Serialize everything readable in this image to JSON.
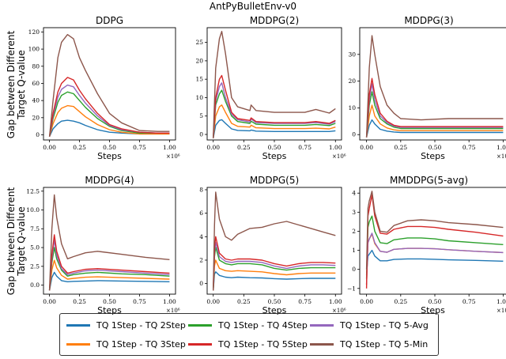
{
  "suptitle": "AntPyBulletEnv-v0",
  "ylabel_lines": [
    "Gap between Different",
    "Target Q-value"
  ],
  "legend": [
    {
      "key": "blue",
      "label": "TQ 1Step - TQ 2Step",
      "color": "#1f77b4"
    },
    {
      "key": "orange",
      "label": "TQ 1Step - TQ 3Step",
      "color": "#ff7f0e"
    },
    {
      "key": "green",
      "label": "TQ 1Step - TQ 4Step",
      "color": "#2ca02c"
    },
    {
      "key": "red",
      "label": "TQ 1Step - TQ 5Step",
      "color": "#d62728"
    },
    {
      "key": "purple",
      "label": "TQ 1Step - TQ 5-Avg",
      "color": "#9467bd"
    },
    {
      "key": "brown",
      "label": "TQ 1Step - TQ 5-Min",
      "color": "#8c564b"
    }
  ],
  "chart_data": [
    {
      "type": "line",
      "title": "DDPG",
      "xlabel": "Steps",
      "x_scale_label": "×10⁶",
      "ylabel": "Gap between Different Target Q-value",
      "xlim": [
        -0.05,
        1.05
      ],
      "ylim": [
        -6,
        125
      ],
      "xticks": [
        0,
        0.25,
        0.5,
        0.75,
        1
      ],
      "xtick_labels": [
        "0.00",
        "0.25",
        "0.50",
        "0.75",
        "1.00"
      ],
      "yticks": [
        0,
        20,
        40,
        60,
        80,
        100,
        120
      ],
      "ytick_labels": [
        "0",
        "20",
        "40",
        "60",
        "80",
        "100",
        "120"
      ],
      "x": [
        0,
        0.03,
        0.07,
        0.1,
        0.15,
        0.2,
        0.25,
        0.3,
        0.4,
        0.5,
        0.6,
        0.75,
        0.9,
        1.0
      ],
      "series": {
        "brown": [
          -2,
          40,
          90,
          108,
          117,
          112,
          90,
          75,
          48,
          25,
          14,
          5,
          4,
          4
        ],
        "red": [
          -2,
          25,
          50,
          60,
          67,
          64,
          52,
          42,
          25,
          12,
          7,
          3,
          2,
          2
        ],
        "purple": [
          -2,
          22,
          44,
          53,
          58,
          56,
          46,
          37,
          22,
          11,
          6,
          3,
          2,
          2
        ],
        "green": [
          -2,
          19,
          38,
          46,
          50,
          48,
          40,
          32,
          19,
          10,
          5,
          2,
          2,
          2
        ],
        "orange": [
          -2,
          13,
          26,
          31,
          34,
          33,
          27,
          21,
          12,
          6,
          3,
          1,
          1,
          1
        ],
        "blue": [
          -2,
          7,
          13,
          16,
          17,
          16,
          14,
          11,
          6,
          3,
          2,
          1,
          1,
          1
        ]
      }
    },
    {
      "type": "line",
      "title": "MDDPG(2)",
      "xlabel": "Steps",
      "x_scale_label": "×10⁶",
      "xlim": [
        -0.05,
        1.05
      ],
      "ylim": [
        -1.5,
        29
      ],
      "xticks": [
        0,
        0.25,
        0.5,
        0.75,
        1
      ],
      "xtick_labels": [
        "0.00",
        "0.25",
        "0.50",
        "0.75",
        "1.00"
      ],
      "yticks": [
        0,
        5,
        10,
        15,
        20,
        25
      ],
      "ytick_labels": [
        "0",
        "5",
        "10",
        "15",
        "20",
        "25"
      ],
      "x": [
        0,
        0.02,
        0.05,
        0.07,
        0.1,
        0.15,
        0.2,
        0.3,
        0.31,
        0.35,
        0.5,
        0.75,
        0.84,
        0.95,
        1.0
      ],
      "series": {
        "brown": [
          -1,
          18,
          26,
          28,
          22,
          10,
          7.5,
          6.5,
          8,
          6.5,
          6,
          6,
          6.8,
          5.8,
          7
        ],
        "red": [
          -1,
          10,
          15,
          16,
          12,
          6,
          4.3,
          3.8,
          4.5,
          3.5,
          3.2,
          3.2,
          3.5,
          3,
          3.8
        ],
        "purple": [
          -1,
          9,
          13,
          14,
          10,
          5.5,
          4,
          3.4,
          4.2,
          3.2,
          3,
          3,
          3.2,
          2.8,
          3.5
        ],
        "green": [
          -1,
          8,
          11,
          12,
          9,
          5,
          3.5,
          3,
          3.6,
          2.8,
          2.5,
          2.5,
          2.7,
          2.4,
          3
        ],
        "orange": [
          -1,
          5,
          7.5,
          8,
          6,
          3,
          2.2,
          2,
          2.5,
          1.8,
          1.6,
          1.6,
          1.7,
          1.5,
          2
        ],
        "blue": [
          -1,
          2.5,
          3.8,
          4,
          3,
          1.5,
          1.1,
          1,
          1.2,
          0.9,
          0.8,
          0.8,
          0.8,
          0.8,
          1
        ]
      }
    },
    {
      "type": "line",
      "title": "MDDPG(3)",
      "xlabel": "Steps",
      "x_scale_label": "×10⁶",
      "xlim": [
        -0.05,
        1.05
      ],
      "ylim": [
        -2,
        40
      ],
      "xticks": [
        0,
        0.25,
        0.5,
        0.75,
        1
      ],
      "xtick_labels": [
        "0.00",
        "0.25",
        "0.50",
        "0.75",
        "1.00"
      ],
      "yticks": [
        0,
        10,
        20,
        30
      ],
      "ytick_labels": [
        "0",
        "10",
        "20",
        "30"
      ],
      "x": [
        0,
        0.02,
        0.04,
        0.06,
        0.1,
        0.15,
        0.2,
        0.25,
        0.4,
        0.6,
        0.8,
        1.0
      ],
      "series": {
        "brown": [
          -1,
          25,
          37,
          30,
          18,
          11,
          8,
          6,
          5.5,
          6,
          6,
          6
        ],
        "red": [
          -1,
          15,
          21,
          15,
          8,
          5,
          3.5,
          3,
          3,
          3,
          3,
          3
        ],
        "purple": [
          -1,
          13,
          19,
          13,
          7,
          4.5,
          3.2,
          2.7,
          2.7,
          2.7,
          2.7,
          2.7
        ],
        "green": [
          -1,
          11,
          16,
          11,
          6,
          4,
          2.8,
          2.3,
          2.3,
          2.3,
          2.3,
          2.3
        ],
        "orange": [
          -1,
          7,
          11,
          7,
          4,
          2.5,
          1.8,
          1.5,
          1.5,
          1.5,
          1.5,
          1.5
        ],
        "blue": [
          -1,
          3.5,
          5.5,
          4,
          2,
          1.3,
          1,
          0.8,
          0.8,
          0.8,
          0.8,
          0.8
        ]
      }
    },
    {
      "type": "line",
      "title": "MDDPG(4)",
      "xlabel": "Steps",
      "x_scale_label": "×10⁶",
      "ylabel": "Gap between Different Target Q-value",
      "xlim": [
        -0.05,
        1.05
      ],
      "ylim": [
        -1.2,
        13
      ],
      "xticks": [
        0,
        0.25,
        0.5,
        0.75,
        1
      ],
      "xtick_labels": [
        "0.00",
        "0.25",
        "0.50",
        "0.75",
        "1.00"
      ],
      "yticks": [
        0,
        2.5,
        5,
        7.5,
        10,
        12.5
      ],
      "ytick_labels": [
        "0.0",
        "2.5",
        "5.0",
        "7.5",
        "10.0",
        "12.5"
      ],
      "x": [
        0,
        0.02,
        0.04,
        0.06,
        0.1,
        0.15,
        0.2,
        0.3,
        0.4,
        0.6,
        0.8,
        1.0
      ],
      "series": {
        "brown": [
          -0.7,
          7.5,
          12,
          9,
          5.5,
          3.5,
          3.8,
          4.3,
          4.5,
          4.1,
          3.7,
          3.4
        ],
        "red": [
          -0.7,
          4,
          6.7,
          4.5,
          2.5,
          1.6,
          1.8,
          2.1,
          2.2,
          2,
          1.8,
          1.6
        ],
        "purple": [
          -0.7,
          3.5,
          6,
          4,
          2.2,
          1.4,
          1.6,
          1.9,
          2,
          1.8,
          1.6,
          1.4
        ],
        "green": [
          -0.7,
          3,
          5,
          3.5,
          2,
          1.2,
          1.4,
          1.6,
          1.7,
          1.5,
          1.4,
          1.2
        ],
        "orange": [
          -0.7,
          2,
          3.3,
          2.3,
          1.3,
          0.8,
          0.9,
          1.05,
          1.1,
          1,
          0.9,
          0.8
        ],
        "blue": [
          -0.7,
          1,
          1.7,
          1.2,
          0.6,
          0.45,
          0.5,
          0.55,
          0.6,
          0.55,
          0.5,
          0.45
        ]
      }
    },
    {
      "type": "line",
      "title": "MDDPG(5)",
      "xlabel": "Steps",
      "x_scale_label": "×10⁶",
      "xlim": [
        -0.05,
        1.05
      ],
      "ylim": [
        -0.9,
        8.2
      ],
      "xticks": [
        0,
        0.25,
        0.5,
        0.75,
        1
      ],
      "xtick_labels": [
        "0.00",
        "0.25",
        "0.50",
        "0.75",
        "1.00"
      ],
      "yticks": [
        0,
        2,
        4,
        6,
        8
      ],
      "ytick_labels": [
        "0",
        "2",
        "4",
        "6",
        "8"
      ],
      "x": [
        0,
        0.01,
        0.02,
        0.05,
        0.1,
        0.15,
        0.2,
        0.3,
        0.4,
        0.5,
        0.6,
        0.7,
        0.8,
        0.9,
        1.0
      ],
      "series": {
        "brown": [
          -0.6,
          5,
          7.8,
          5.5,
          4,
          3.7,
          4.2,
          4.7,
          4.8,
          5.1,
          5.3,
          5,
          4.7,
          4.4,
          4.1
        ],
        "red": [
          -0.6,
          3,
          4,
          2.6,
          2.1,
          2,
          2.1,
          2.1,
          2,
          1.7,
          1.5,
          1.7,
          1.8,
          1.8,
          1.75
        ],
        "purple": [
          -0.6,
          2.6,
          3.5,
          2.3,
          1.9,
          1.8,
          1.9,
          1.9,
          1.8,
          1.5,
          1.3,
          1.5,
          1.6,
          1.6,
          1.55
        ],
        "green": [
          -0.6,
          2.3,
          3.1,
          2,
          1.7,
          1.6,
          1.7,
          1.7,
          1.6,
          1.3,
          1.15,
          1.3,
          1.35,
          1.35,
          1.35
        ],
        "orange": [
          -0.6,
          1.5,
          2,
          1.3,
          1.1,
          1.05,
          1.1,
          1.05,
          1,
          0.85,
          0.75,
          0.85,
          0.9,
          0.9,
          0.9
        ],
        "blue": [
          -0.6,
          0.8,
          1,
          0.7,
          0.55,
          0.5,
          0.55,
          0.5,
          0.48,
          0.42,
          0.38,
          0.42,
          0.45,
          0.45,
          0.45
        ]
      }
    },
    {
      "type": "line",
      "title": "MMDDPG(5-avg)",
      "xlabel": "Steps",
      "x_scale_label": "×10⁶",
      "xlim": [
        -0.05,
        1.05
      ],
      "ylim": [
        -1.3,
        4.3
      ],
      "xticks": [
        0,
        0.25,
        0.5,
        0.75,
        1
      ],
      "xtick_labels": [
        "0.00",
        "0.25",
        "0.50",
        "0.75",
        "1.00"
      ],
      "yticks": [
        -1,
        0,
        1,
        2,
        3,
        4
      ],
      "ytick_labels": [
        "−1",
        "0",
        "1",
        "2",
        "3",
        "4"
      ],
      "x": [
        0,
        0.01,
        0.02,
        0.04,
        0.06,
        0.1,
        0.15,
        0.2,
        0.3,
        0.4,
        0.5,
        0.6,
        0.8,
        1.0
      ],
      "series": {
        "brown": [
          0,
          3.2,
          3.6,
          4.1,
          3,
          2,
          1.95,
          2.3,
          2.55,
          2.6,
          2.55,
          2.45,
          2.35,
          2.2
        ],
        "red": [
          -1,
          2.8,
          3.2,
          3.9,
          2.8,
          1.9,
          1.85,
          2.1,
          2.25,
          2.25,
          2.2,
          2.1,
          1.95,
          1.75
        ],
        "green": [
          -0.5,
          2.2,
          2.5,
          2.8,
          2,
          1.4,
          1.35,
          1.55,
          1.65,
          1.65,
          1.6,
          1.5,
          1.4,
          1.3
        ],
        "orange": [
          -0.8,
          1.4,
          1.6,
          1.85,
          1.35,
          0.95,
          0.9,
          1.05,
          1.1,
          1.1,
          1.08,
          1.03,
          0.95,
          0.88
        ],
        "purple": [
          -0.8,
          1.4,
          1.6,
          1.9,
          1.4,
          0.95,
          0.9,
          1.05,
          1.1,
          1.1,
          1.08,
          1.03,
          0.95,
          0.88
        ],
        "blue": [
          -0.3,
          0.7,
          0.8,
          1,
          0.7,
          0.45,
          0.45,
          0.52,
          0.55,
          0.55,
          0.53,
          0.5,
          0.47,
          0.43
        ]
      }
    }
  ]
}
